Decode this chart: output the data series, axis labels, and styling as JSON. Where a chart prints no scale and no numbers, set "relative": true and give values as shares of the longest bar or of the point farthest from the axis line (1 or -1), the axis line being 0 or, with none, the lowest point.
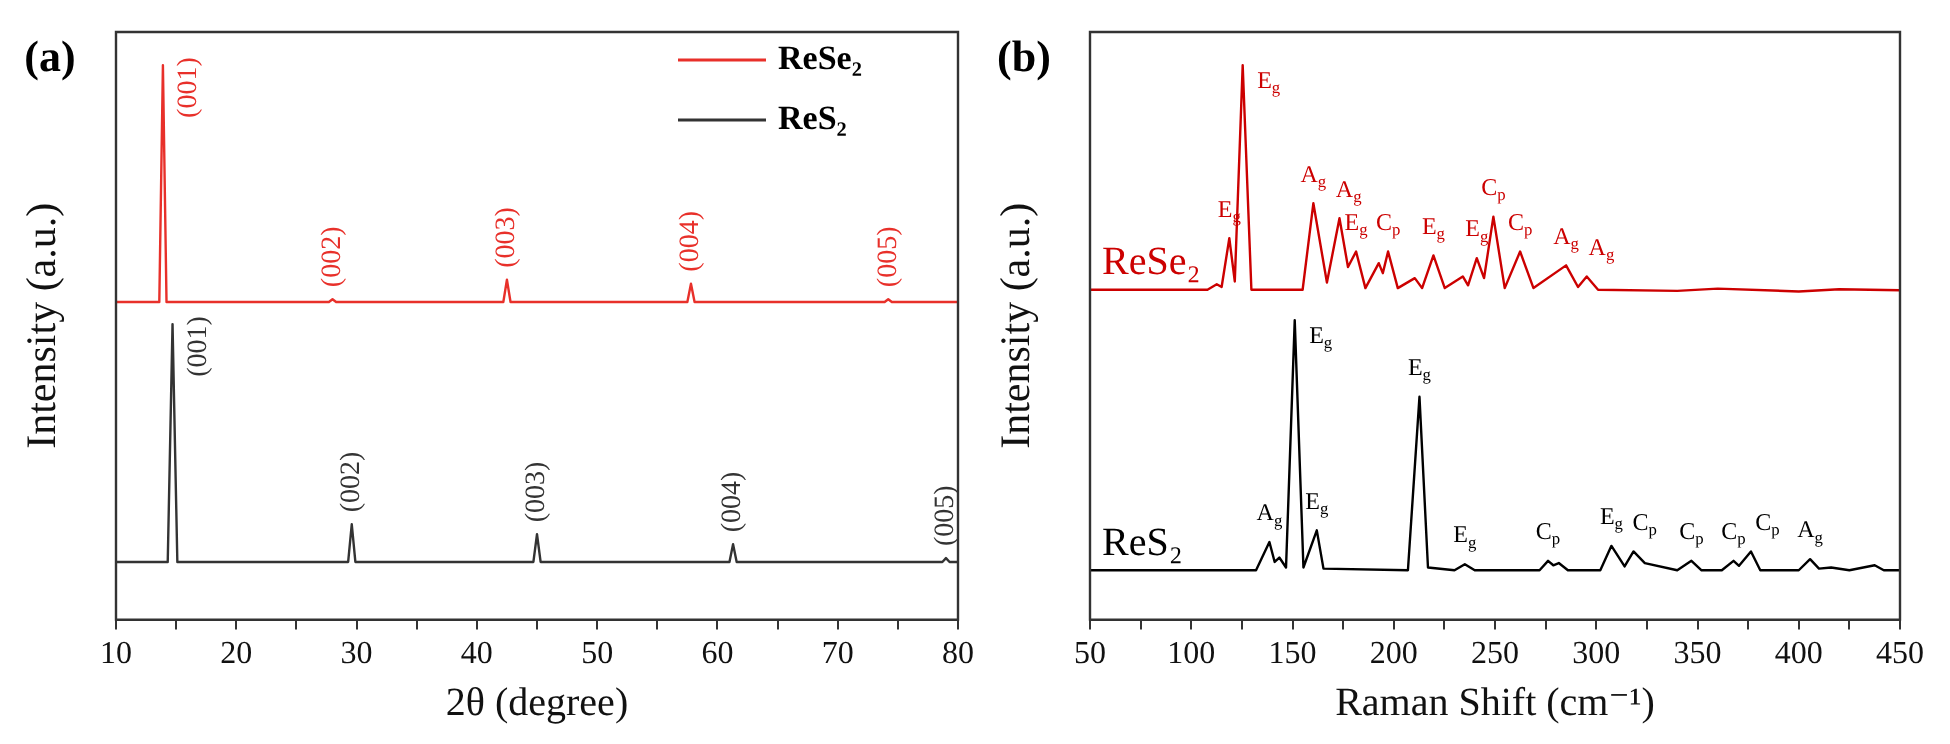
{
  "chart_data": [
    {
      "type": "line",
      "title": "(a)",
      "xlabel": "2θ (degree)",
      "ylabel": "Intensity (a.u.)",
      "relative": true,
      "legend": "top right",
      "xlim": [
        10,
        80
      ],
      "xticks": [
        10,
        {
          "value": 15,
          "label": null
        },
        20,
        {
          "value": 25,
          "label": null
        },
        30,
        {
          "value": 35,
          "label": null
        },
        40,
        {
          "value": 45,
          "label": null
        },
        50,
        {
          "value": 55,
          "label": null
        },
        60,
        {
          "value": 65,
          "label": null
        },
        70,
        {
          "value": 75,
          "label": null
        },
        80
      ],
      "series": [
        {
          "name": "ReSe₂",
          "color": "#e8302a",
          "x": [
            10,
            13.6,
            13.9,
            14.2,
            27.7,
            28.0,
            28.3,
            42.2,
            42.5,
            42.8,
            57.5,
            57.8,
            58.1,
            73.9,
            74.2,
            74.5,
            80
          ],
          "values": [
            0.573,
            0.573,
            1,
            0.573,
            0.573,
            0.578,
            0.573,
            0.573,
            0.613,
            0.573,
            0.573,
            0.606,
            0.573,
            0.573,
            0.578,
            0.573,
            0.573
          ]
        },
        {
          "name": "ReS₂",
          "color": "#333333",
          "x": [
            10,
            14.3,
            14.7,
            15.1,
            29.3,
            29.6,
            29.9,
            44.7,
            45.0,
            45.3,
            61.0,
            61.3,
            61.6,
            78.7,
            79.0,
            79.3,
            80
          ],
          "values": [
            0.104,
            0.104,
            0.533,
            0.104,
            0.104,
            0.172,
            0.104,
            0.104,
            0.154,
            0.104,
            0.104,
            0.136,
            0.104,
            0.104,
            0.111,
            0.104,
            0.104
          ]
        }
      ],
      "annotations": [
        {
          "text": "(001)",
          "x": 13.9,
          "y": 1
        },
        {
          "text": "(002)",
          "x": 28.0,
          "y": 0.578
        },
        {
          "text": "(003)",
          "x": 42.5,
          "y": 0.613
        },
        {
          "text": "(004)",
          "x": 57.8,
          "y": 0.606
        },
        {
          "text": "(005)",
          "x": 74.2,
          "y": 0.578
        },
        {
          "text": "(001)",
          "x": 14.7,
          "y": 0.533
        },
        {
          "text": "(002)",
          "x": 29.6,
          "y": 0.172
        },
        {
          "text": "(003)",
          "x": 45.0,
          "y": 0.154
        },
        {
          "text": "(004)",
          "x": 61.3,
          "y": 0.136
        },
        {
          "text": "(005)",
          "x": 79.0,
          "y": 0.111
        }
      ]
    },
    {
      "type": "line",
      "title": "(b)",
      "xlabel": "Raman Shift (cm⁻¹)",
      "ylabel": "Intensity (a.u.)",
      "relative": true,
      "xlim": [
        50,
        450
      ],
      "xticks": [
        50,
        {
          "value": 75,
          "label": null
        },
        100,
        {
          "value": 125,
          "label": null
        },
        150,
        {
          "value": 175,
          "label": null
        },
        200,
        {
          "value": 225,
          "label": null
        },
        250,
        {
          "value": 275,
          "label": null
        },
        300,
        {
          "value": 325,
          "label": null
        },
        350,
        {
          "value": 375,
          "label": null
        },
        400,
        {
          "value": 425,
          "label": null
        },
        450
      ],
      "series": [
        {
          "name": "ReSe₂",
          "color": "#cc0000",
          "x": [
            50,
            108,
            112.6,
            115,
            118.8,
            121.5,
            125.4,
            129.7,
            155,
            160.3,
            167,
            173.2,
            177.4,
            181.4,
            186,
            192.6,
            194.6,
            197.2,
            202,
            210.4,
            214,
            219.6,
            225.2,
            234.1,
            236.7,
            241,
            244.6,
            249.2,
            254.8,
            262.4,
            269,
            285.1,
            291,
            295.3,
            300.9,
            340,
            360,
            400,
            420,
            450
          ],
          "values": [
            0.595,
            0.595,
            0.605,
            0.6,
            0.688,
            0.61,
            1,
            0.595,
            0.595,
            0.751,
            0.608,
            0.724,
            0.636,
            0.664,
            0.598,
            0.643,
            0.625,
            0.664,
            0.598,
            0.616,
            0.598,
            0.657,
            0.598,
            0.619,
            0.603,
            0.652,
            0.616,
            0.727,
            0.598,
            0.664,
            0.598,
            0.639,
            0.6,
            0.619,
            0.595,
            0.593,
            0.597,
            0.592,
            0.596,
            0.594
          ]
        },
        {
          "name": "ReS₂",
          "color": "#000000",
          "x": [
            50,
            132,
            138.6,
            141.2,
            143.5,
            146.8,
            151.1,
            155.4,
            162,
            165.3,
            207,
            212.7,
            216.9,
            230,
            235.1,
            240,
            272,
            276.2,
            278.8,
            281.5,
            286,
            302,
            307.5,
            314,
            318.4,
            324,
            340,
            347,
            352,
            362,
            367.8,
            370.5,
            376.4,
            381,
            400,
            405.6,
            410,
            416,
            425,
            437.5,
            442,
            450
          ],
          "values": [
            0.089,
            0.089,
            0.14,
            0.104,
            0.112,
            0.094,
            0.54,
            0.094,
            0.161,
            0.092,
            0.089,
            0.402,
            0.094,
            0.089,
            0.1,
            0.089,
            0.089,
            0.106,
            0.098,
            0.102,
            0.089,
            0.089,
            0.133,
            0.096,
            0.123,
            0.102,
            0.089,
            0.106,
            0.089,
            0.089,
            0.106,
            0.097,
            0.123,
            0.089,
            0.089,
            0.109,
            0.092,
            0.094,
            0.089,
            0.098,
            0.089,
            0.089
          ]
        }
      ],
      "annotations": [
        {
          "text": "E$_{g}$",
          "x": 118.8,
          "y": 0.688
        },
        {
          "text": "E$_{g}$",
          "x": 125.4,
          "y": 1
        },
        {
          "text": "A$_{g}$",
          "x": 160.3,
          "y": 0.751
        },
        {
          "text": "A$_{g}$",
          "x": 173.2,
          "y": 0.724
        },
        {
          "text": "E$_{g}$",
          "x": 181.4,
          "y": 0.664
        },
        {
          "text": "C$_{p}$",
          "x": 197.2,
          "y": 0.664
        },
        {
          "text": "E$_{g}$",
          "x": 219.6,
          "y": 0.657
        },
        {
          "text": "E$_{g}$",
          "x": 241,
          "y": 0.652
        },
        {
          "text": "C$_{p}$",
          "x": 249.2,
          "y": 0.727
        },
        {
          "text": "C$_{p}$",
          "x": 262.4,
          "y": 0.664
        },
        {
          "text": "A$_{g}$",
          "x": 285.1,
          "y": 0.639
        },
        {
          "text": "A$_{g}$",
          "x": 295.3,
          "y": 0.619
        },
        {
          "text": "A$_{g}$",
          "x": 138.6,
          "y": 0.14
        },
        {
          "text": "E$_{g}$",
          "x": 151.1,
          "y": 0.54
        },
        {
          "text": "E$_{g}$",
          "x": 162,
          "y": 0.161
        },
        {
          "text": "E$_{g}$",
          "x": 212.7,
          "y": 0.402
        },
        {
          "text": "E$_{g}$",
          "x": 235.1,
          "y": 0.1
        },
        {
          "text": "C$_{p}$",
          "x": 276.2,
          "y": 0.106
        },
        {
          "text": "E$_{g}$",
          "x": 307.5,
          "y": 0.133
        },
        {
          "text": "C$_{p}$",
          "x": 318.4,
          "y": 0.123
        },
        {
          "text": "C$_{p}$",
          "x": 347,
          "y": 0.106
        },
        {
          "text": "C$_{p}$",
          "x": 367.8,
          "y": 0.106
        },
        {
          "text": "C$_{p}$",
          "x": 376.4,
          "y": 0.123
        },
        {
          "text": "A$_{g}$",
          "x": 405.6,
          "y": 0.109
        }
      ]
    }
  ]
}
